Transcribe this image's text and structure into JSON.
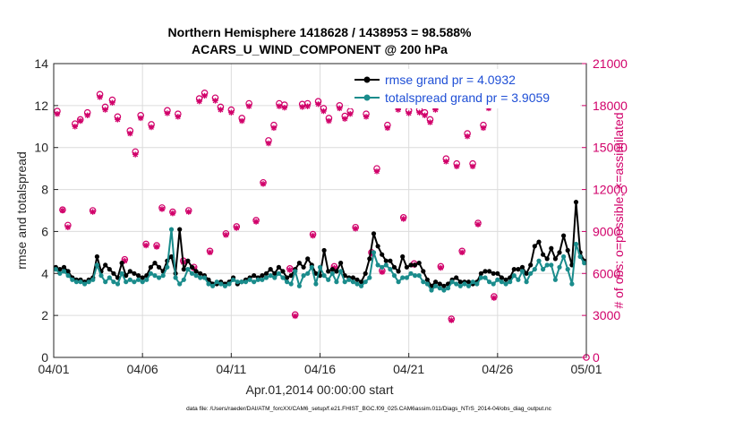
{
  "chart_data": {
    "type": "line",
    "title": "Northern Hemisphere 1418628 / 1438953 = 98.588%",
    "subtitle": "ACARS_U_WIND_COMPONENT @ 200 hPa",
    "xlabel": "Apr.01,2014 00:00:00 start",
    "ylabel": "rmse and totalspread",
    "y2label": "# of obs: o=possible; ×=assimilated",
    "footnote": "data file: /Users/raeder/DAI/ATM_forcXX/CAM6_setup/f.e21.FHIST_BGC.f09_025.CAM6assim.011/Diags_NTrS_2014-04/obs_diag_output.nc",
    "x_tick_labels": [
      "04/01",
      "04/06",
      "04/11",
      "04/16",
      "04/21",
      "04/26",
      "05/01"
    ],
    "x_tick_days": [
      0,
      5,
      10,
      15,
      20,
      25,
      30
    ],
    "xlim": [
      0,
      30
    ],
    "ylim": [
      0,
      14
    ],
    "y_ticks": [
      0,
      2,
      4,
      6,
      8,
      10,
      12,
      14
    ],
    "y2lim": [
      0,
      21000
    ],
    "y2_ticks": [
      0,
      3000,
      6000,
      9000,
      12000,
      15000,
      18000,
      21000
    ],
    "series": [
      {
        "name": "rmse grand pr = 4.0932",
        "color": "#000000",
        "values": [
          4.3,
          4.2,
          4.3,
          4.1,
          3.8,
          3.7,
          3.7,
          3.6,
          3.7,
          3.8,
          4.8,
          4.1,
          4.4,
          4.2,
          4.0,
          3.8,
          4.5,
          3.9,
          4.1,
          4.0,
          3.9,
          3.8,
          3.9,
          4.3,
          4.5,
          4.3,
          4.1,
          4.6,
          4.8,
          4.0,
          6.1,
          4.2,
          4.6,
          4.3,
          4.1,
          4.0,
          3.9,
          3.7,
          3.5,
          3.5,
          3.6,
          3.5,
          3.6,
          3.8,
          3.5,
          3.6,
          3.7,
          3.8,
          3.9,
          3.8,
          3.9,
          4.0,
          4.2,
          4.0,
          4.3,
          4.1,
          3.8,
          3.9,
          4.2,
          4.5,
          4.3,
          4.7,
          4.4,
          4.0,
          3.9,
          5.1,
          4.1,
          4.2,
          4.1,
          4.5,
          3.9,
          3.8,
          3.8,
          3.7,
          3.6,
          4.0,
          4.7,
          5.9,
          5.3,
          4.9,
          4.6,
          4.6,
          4.3,
          4.1,
          4.8,
          4.3,
          4.4,
          4.4,
          4.5,
          4.1,
          3.7,
          3.4,
          3.6,
          3.5,
          3.4,
          3.5,
          3.7,
          3.8,
          3.6,
          3.6,
          3.6,
          3.5,
          3.6,
          4.0,
          4.1,
          4.1,
          4.0,
          4.0,
          3.8,
          3.7,
          3.8,
          4.2,
          4.2,
          4.3,
          4.0,
          4.4,
          5.3,
          5.5,
          4.9,
          4.7,
          5.2,
          4.7,
          5.0,
          5.8,
          5.1,
          4.4,
          7.4,
          5.0,
          4.6
        ]
      },
      {
        "name": "totalspread grand pr = 3.9059",
        "color": "#1a8c8c",
        "values": [
          4.2,
          4.0,
          4.1,
          3.9,
          3.7,
          3.6,
          3.6,
          3.5,
          3.6,
          3.7,
          4.4,
          3.9,
          3.6,
          3.8,
          3.6,
          3.5,
          4.0,
          3.6,
          3.7,
          3.6,
          3.7,
          3.6,
          3.7,
          4.0,
          3.9,
          3.8,
          3.9,
          4.3,
          6.1,
          3.8,
          3.5,
          3.7,
          4.2,
          4.0,
          3.9,
          3.8,
          3.8,
          3.5,
          3.4,
          3.6,
          3.5,
          3.4,
          3.5,
          3.7,
          3.6,
          3.6,
          3.6,
          3.7,
          3.6,
          3.7,
          3.7,
          3.8,
          3.9,
          3.8,
          4.0,
          3.8,
          3.6,
          3.5,
          4.1,
          3.4,
          3.9,
          4.0,
          4.3,
          3.5,
          4.3,
          3.9,
          3.7,
          4.0,
          3.6,
          4.1,
          3.6,
          3.7,
          3.6,
          3.5,
          3.4,
          3.6,
          3.8,
          5.0,
          4.4,
          4.3,
          4.4,
          4.2,
          3.9,
          3.6,
          3.8,
          3.8,
          4.0,
          3.9,
          3.9,
          3.6,
          3.5,
          3.2,
          3.4,
          3.3,
          3.2,
          3.3,
          3.6,
          3.5,
          3.4,
          3.5,
          3.4,
          3.6,
          3.5,
          3.8,
          3.8,
          3.6,
          3.5,
          3.7,
          3.6,
          3.5,
          3.6,
          3.9,
          3.7,
          4.1,
          3.6,
          4.0,
          4.2,
          4.6,
          4.2,
          4.4,
          4.4,
          3.7,
          4.3,
          4.8,
          4.2,
          3.5,
          5.4,
          4.8,
          4.5
        ]
      }
    ],
    "obs_possible": [
      17600,
      10550,
      9450,
      16700,
      17000,
      17500,
      10500,
      18800,
      17900,
      18400,
      17200,
      7000,
      16200,
      14700,
      17300,
      8100,
      16650,
      8000,
      10700,
      17650,
      10400,
      17400,
      6900,
      10500,
      6450,
      18500,
      18900,
      7600,
      18550,
      17900,
      8850,
      17700,
      9350,
      17100,
      18150,
      9800,
      12500,
      15500,
      16600,
      18150,
      18050,
      6350,
      3050,
      18100,
      18150,
      8800,
      18300,
      17800,
      17100,
      6500,
      18000,
      17250,
      17600,
      9300,
      19900,
      17400,
      7500,
      13500,
      6200,
      16600,
      18400,
      17900,
      10000,
      17650,
      6700,
      17700,
      17500,
      17000,
      17900,
      6500,
      14200,
      2750,
      13850,
      7600,
      16000,
      13850,
      9600,
      16600,
      18000,
      4350
    ],
    "obs_assimilated": [
      17400,
      10500,
      9300,
      16500,
      16900,
      17300,
      10400,
      18600,
      17700,
      18200,
      17000,
      6900,
      16000,
      14500,
      17100,
      8000,
      16450,
      7900,
      10600,
      17450,
      10300,
      17200,
      6800,
      10400,
      6350,
      18300,
      18700,
      7500,
      18350,
      17700,
      8750,
      17500,
      9250,
      16900,
      17950,
      9700,
      12400,
      15300,
      16400,
      17950,
      17850,
      6250,
      2950,
      17900,
      17950,
      8700,
      18100,
      17600,
      16900,
      6400,
      17800,
      17050,
      17400,
      9200,
      19700,
      17200,
      7400,
      13300,
      6100,
      16400,
      18200,
      17700,
      9900,
      17450,
      6600,
      17500,
      17300,
      16800,
      17700,
      6400,
      14000,
      2650,
      13650,
      7500,
      15800,
      13650,
      9500,
      16400,
      17800,
      4250
    ],
    "obs_x_days": [
      0.2,
      0.5,
      0.8,
      1.2,
      1.5,
      1.9,
      2.2,
      2.6,
      2.9,
      3.3,
      3.6,
      4.0,
      4.3,
      4.6,
      4.9,
      5.2,
      5.5,
      5.8,
      6.1,
      6.4,
      6.7,
      7.0,
      7.3,
      7.6,
      7.9,
      8.2,
      8.5,
      8.8,
      9.1,
      9.4,
      9.7,
      10.0,
      10.3,
      10.6,
      11.0,
      11.4,
      11.8,
      12.1,
      12.4,
      12.7,
      13.0,
      13.3,
      13.6,
      14.0,
      14.3,
      14.6,
      14.9,
      15.2,
      15.5,
      15.8,
      16.1,
      16.4,
      16.7,
      17.0,
      17.3,
      17.6,
      17.9,
      18.2,
      18.5,
      18.8,
      19.1,
      19.4,
      19.7,
      20.0,
      20.3,
      20.6,
      20.9,
      21.2,
      21.5,
      21.8,
      22.1,
      22.4,
      22.7,
      23.0,
      23.3,
      23.6,
      23.9,
      24.2,
      24.5,
      24.8
    ]
  }
}
